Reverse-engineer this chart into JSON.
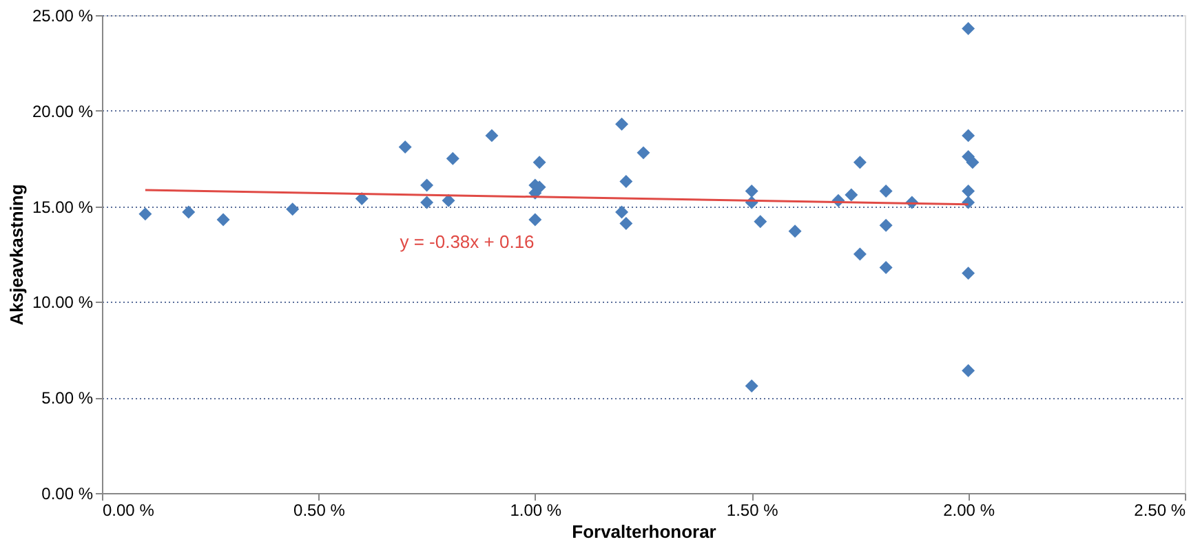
{
  "chart_data": {
    "type": "scatter",
    "xlabel": "Forvalterhonorar",
    "ylabel": "Aksjeavkastning",
    "xlim": [
      0,
      2.5
    ],
    "ylim": [
      0,
      25
    ],
    "xticks": [
      {
        "value": 0,
        "label": "0.00 %"
      },
      {
        "value": 0.5,
        "label": "0.50 %"
      },
      {
        "value": 1,
        "label": "1.00 %"
      },
      {
        "value": 1.5,
        "label": "1.50 %"
      },
      {
        "value": 2,
        "label": "2.00 %"
      },
      {
        "value": 2.5,
        "label": "2.50 %"
      }
    ],
    "yticks": [
      {
        "value": 0,
        "label": "0.00 %"
      },
      {
        "value": 5,
        "label": "5.00 %"
      },
      {
        "value": 10,
        "label": "10.00 %"
      },
      {
        "value": 15,
        "label": "15.00 %"
      },
      {
        "value": 20,
        "label": "20.00 %"
      },
      {
        "value": 25,
        "label": "25.00 %"
      }
    ],
    "grid": "y",
    "series": [
      {
        "color": "#4a7ebb",
        "marker": "diamond",
        "x": [
          0.1,
          0.2,
          0.28,
          0.44,
          0.6,
          0.7,
          0.75,
          0.75,
          0.8,
          0.81,
          0.9,
          1.0,
          1.0,
          1.0,
          1.01,
          1.01,
          1.2,
          1.21,
          1.2,
          1.21,
          1.25,
          1.5,
          1.5,
          1.52,
          1.5,
          1.6,
          1.7,
          1.73,
          1.75,
          1.75,
          1.81,
          1.81,
          1.81,
          1.87,
          2.0,
          2.0,
          2.0,
          2.01,
          2.0,
          2.0,
          2.0,
          2.0
        ],
        "values": [
          14.6,
          14.7,
          14.3,
          14.85,
          15.4,
          18.1,
          16.1,
          15.2,
          15.3,
          17.5,
          18.7,
          16.1,
          15.7,
          14.3,
          17.3,
          16.0,
          19.3,
          16.3,
          14.7,
          14.1,
          17.8,
          15.8,
          15.2,
          14.2,
          5.6,
          13.7,
          15.3,
          15.6,
          17.3,
          12.5,
          15.8,
          14.0,
          11.8,
          15.2,
          24.3,
          18.7,
          17.6,
          17.3,
          15.8,
          15.2,
          11.5,
          6.4
        ]
      },
      {
        "type": "line",
        "color": "#e04a45",
        "x": [
          0.1,
          2.0
        ],
        "values": [
          15.85,
          15.1
        ]
      }
    ],
    "annotations": [
      "y = -0.38x + 0.16"
    ]
  }
}
